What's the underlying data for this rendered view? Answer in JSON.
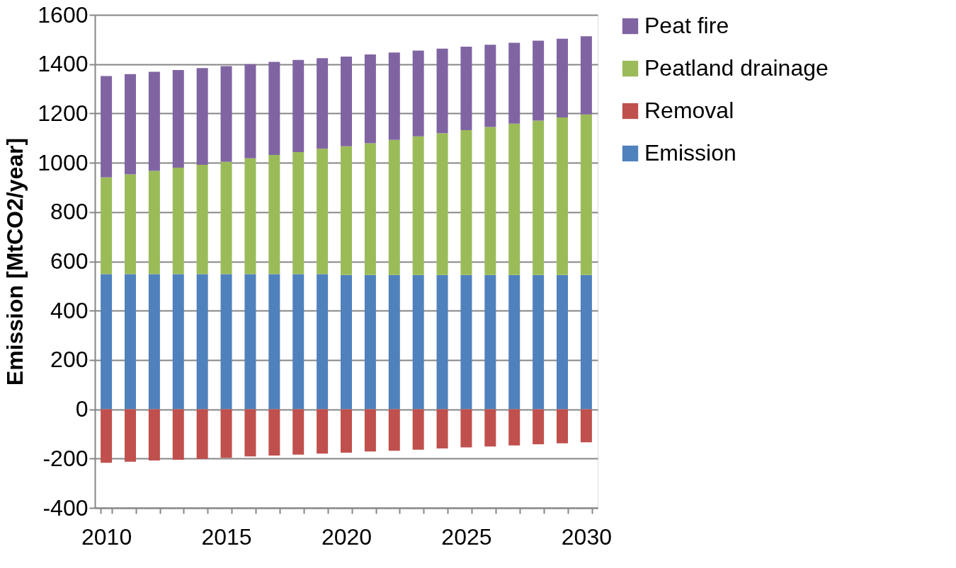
{
  "chart_data": {
    "type": "bar",
    "stacked": true,
    "ylabel": "Emission [MtCO2/year]",
    "categories": [
      "2010",
      null,
      null,
      null,
      null,
      "2015",
      null,
      null,
      null,
      null,
      "2020",
      null,
      null,
      null,
      null,
      "2025",
      null,
      null,
      null,
      null,
      "2030"
    ],
    "series": [
      {
        "name": "Emission",
        "color": "#4f81bd",
        "values": [
          548,
          548,
          548,
          548,
          548,
          548,
          548,
          548,
          548,
          548,
          545,
          545,
          545,
          545,
          545,
          545,
          545,
          545,
          545,
          545,
          545
        ]
      },
      {
        "name": "Removal",
        "color": "#c0504d",
        "values": [
          -217,
          -213,
          -208,
          -205,
          -201,
          -197,
          -191,
          -188,
          -184,
          -180,
          -176,
          -171,
          -168,
          -164,
          -159,
          -155,
          -151,
          -147,
          -142,
          -138,
          -134
        ]
      },
      {
        "name": "Peatland drainage",
        "color": "#9bbb59",
        "values": [
          393,
          405,
          419,
          432,
          444,
          456,
          470,
          484,
          495,
          509,
          522,
          534,
          548,
          562,
          575,
          587,
          600,
          614,
          626,
          639,
          651
        ]
      },
      {
        "name": "Peat fire",
        "color": "#8064a2",
        "values": [
          411,
          407,
          402,
          396,
          392,
          388,
          382,
          377,
          374,
          367,
          364,
          360,
          354,
          348,
          343,
          339,
          334,
          328,
          324,
          319,
          317
        ]
      }
    ],
    "ylim": [
      -400,
      1600
    ],
    "yticks": [
      -400,
      -200,
      0,
      200,
      400,
      600,
      800,
      1000,
      1200,
      1400,
      1600
    ],
    "grid": "y",
    "legend": "right"
  }
}
